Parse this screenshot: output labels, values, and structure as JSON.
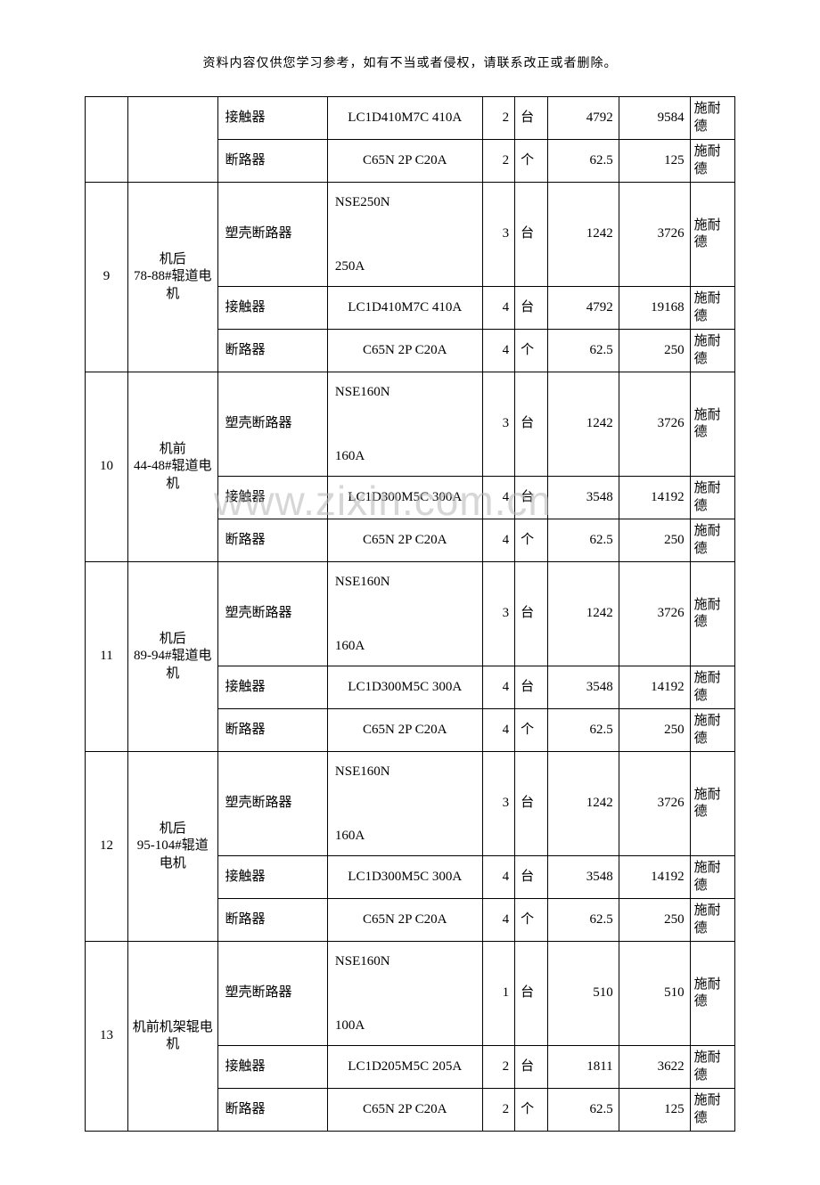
{
  "header_note": "资料内容仅供您学习参考，如有不当或者侵权，请联系改正或者删除。",
  "watermark": "www.zixin.com.cn",
  "groups": [
    {
      "idx": "",
      "location": "",
      "rows": [
        {
          "part": "接触器",
          "model": "LC1D410M7C 410A",
          "model_tall": false,
          "qty": "2",
          "unit": "台",
          "price": "4792",
          "total": "9584",
          "brand": "施耐德"
        },
        {
          "part": "断路器",
          "model": "C65N 2P C20A",
          "model_tall": false,
          "qty": "2",
          "unit": "个",
          "price": "62.5",
          "total": "125",
          "brand": "施耐德"
        }
      ]
    },
    {
      "idx": "9",
      "location": "机后\n78-88#辊道电机",
      "rows": [
        {
          "part": "塑壳断路器",
          "model": "NSE250N\n250A",
          "model_tall": true,
          "qty": "3",
          "unit": "台",
          "price": "1242",
          "total": "3726",
          "brand": "施耐德"
        },
        {
          "part": "接触器",
          "model": "LC1D410M7C 410A",
          "model_tall": false,
          "qty": "4",
          "unit": "台",
          "price": "4792",
          "total": "19168",
          "brand": "施耐德"
        },
        {
          "part": "断路器",
          "model": "C65N 2P C20A",
          "model_tall": false,
          "qty": "4",
          "unit": "个",
          "price": "62.5",
          "total": "250",
          "brand": "施耐德"
        }
      ]
    },
    {
      "idx": "10",
      "location": "机前\n44-48#辊道电机",
      "rows": [
        {
          "part": "塑壳断路器",
          "model": "NSE160N\n160A",
          "model_tall": true,
          "qty": "3",
          "unit": "台",
          "price": "1242",
          "total": "3726",
          "brand": "施耐德"
        },
        {
          "part": "接触器",
          "model": "LC1D300M5C 300A",
          "model_tall": false,
          "qty": "4",
          "unit": "台",
          "price": "3548",
          "total": "14192",
          "brand": "施耐德"
        },
        {
          "part": "断路器",
          "model": "C65N 2P C20A",
          "model_tall": false,
          "qty": "4",
          "unit": "个",
          "price": "62.5",
          "total": "250",
          "brand": "施耐德"
        }
      ]
    },
    {
      "idx": "11",
      "location": "机后\n89-94#辊道电机",
      "rows": [
        {
          "part": "塑壳断路器",
          "model": "NSE160N\n160A",
          "model_tall": true,
          "qty": "3",
          "unit": "台",
          "price": "1242",
          "total": "3726",
          "brand": "施耐德"
        },
        {
          "part": "接触器",
          "model": "LC1D300M5C 300A",
          "model_tall": false,
          "qty": "4",
          "unit": "台",
          "price": "3548",
          "total": "14192",
          "brand": "施耐德"
        },
        {
          "part": "断路器",
          "model": "C65N 2P C20A",
          "model_tall": false,
          "qty": "4",
          "unit": "个",
          "price": "62.5",
          "total": "250",
          "brand": "施耐德"
        }
      ]
    },
    {
      "idx": "12",
      "location": "机后\n95-104#辊道电机",
      "rows": [
        {
          "part": "塑壳断路器",
          "model": "NSE160N\n160A",
          "model_tall": true,
          "qty": "3",
          "unit": "台",
          "price": "1242",
          "total": "3726",
          "brand": "施耐德"
        },
        {
          "part": "接触器",
          "model": "LC1D300M5C 300A",
          "model_tall": false,
          "qty": "4",
          "unit": "台",
          "price": "3548",
          "total": "14192",
          "brand": "施耐德"
        },
        {
          "part": "断路器",
          "model": "C65N 2P C20A",
          "model_tall": false,
          "qty": "4",
          "unit": "个",
          "price": "62.5",
          "total": "250",
          "brand": "施耐德"
        }
      ]
    },
    {
      "idx": "13",
      "location": "机前机架辊电机",
      "rows": [
        {
          "part": "塑壳断路器",
          "model": "NSE160N\n100A",
          "model_tall": true,
          "qty": "1",
          "unit": "台",
          "price": "510",
          "total": "510",
          "brand": "施耐德"
        },
        {
          "part": "接触器",
          "model": "LC1D205M5C 205A",
          "model_tall": false,
          "qty": "2",
          "unit": "台",
          "price": "1811",
          "total": "3622",
          "brand": "施耐德"
        },
        {
          "part": "断路器",
          "model": "C65N 2P C20A",
          "model_tall": false,
          "qty": "2",
          "unit": "个",
          "price": "62.5",
          "total": "125",
          "brand": "施耐德"
        }
      ]
    }
  ]
}
